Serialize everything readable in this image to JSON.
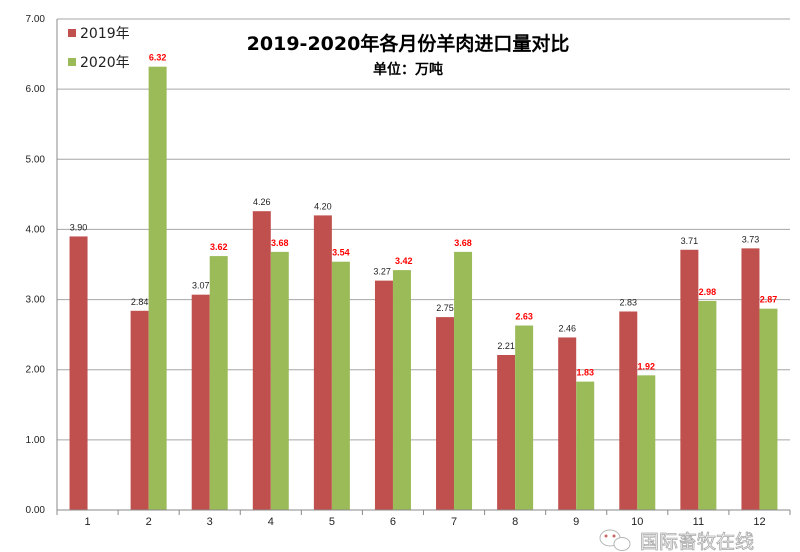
{
  "chart_data": {
    "type": "bar",
    "title": "2019-2020年各月份羊肉进口量对比",
    "subtitle": "单位：万吨",
    "categories": [
      "1",
      "2",
      "3",
      "4",
      "5",
      "6",
      "7",
      "8",
      "9",
      "10",
      "11",
      "12"
    ],
    "series": [
      {
        "name": "2019年",
        "color": "#c0504d",
        "values": [
          3.9,
          2.84,
          3.07,
          4.26,
          4.2,
          3.27,
          2.75,
          2.21,
          2.46,
          2.83,
          3.71,
          3.73
        ]
      },
      {
        "name": "2020年",
        "color": "#9bbb59",
        "values": [
          null,
          6.32,
          3.62,
          3.68,
          3.54,
          3.42,
          3.68,
          2.63,
          1.83,
          1.92,
          2.98,
          2.87
        ]
      }
    ],
    "data_label_colors": [
      "#222222",
      "#ff0000"
    ],
    "yticks": [
      "0.00",
      "1.00",
      "2.00",
      "3.00",
      "4.00",
      "5.00",
      "6.00",
      "7.00"
    ],
    "ylim": [
      0,
      7
    ],
    "grid": true,
    "legend_placement": "top-left",
    "xlabel": "",
    "ylabel": ""
  },
  "watermark": {
    "text": "国际畜牧在线",
    "icon": "wechat-icon"
  }
}
